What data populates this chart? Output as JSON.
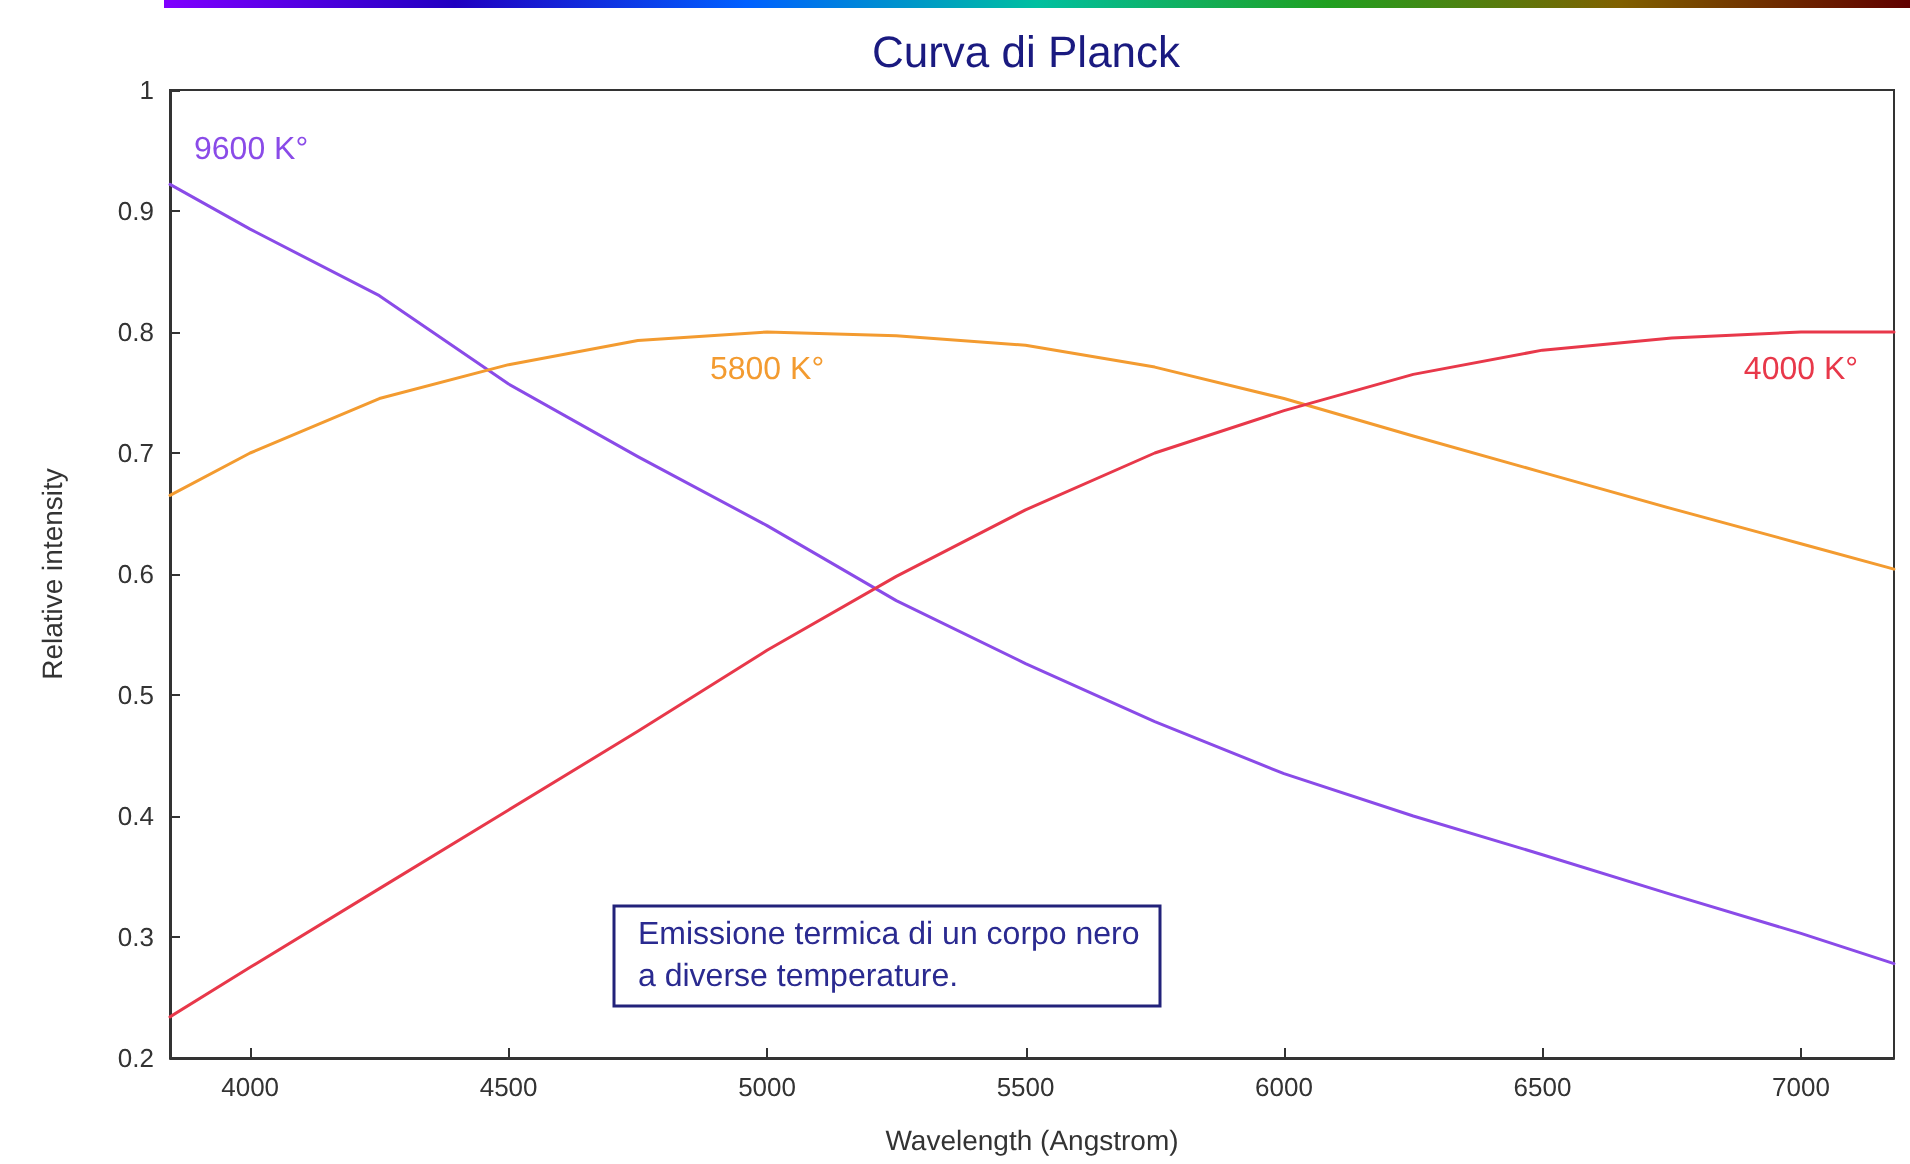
{
  "chart_data": {
    "type": "line",
    "title": "Curva di Planck",
    "xlabel": "Wavelength (Angstrom)",
    "ylabel": "Relative intensity",
    "x": [
      3845,
      4000,
      4250,
      4500,
      4750,
      5000,
      5250,
      5500,
      5750,
      6000,
      6250,
      6500,
      6750,
      7000,
      7180
    ],
    "series": [
      {
        "name": "9600 K°",
        "color": "#8a4be8",
        "values": [
          0.922,
          0.885,
          0.83,
          0.757,
          0.697,
          0.64,
          0.578,
          0.526,
          0.478,
          0.435,
          0.4,
          0.368,
          0.335,
          0.303,
          0.278
        ]
      },
      {
        "name": "5800 K°",
        "color": "#f39b30",
        "values": [
          0.665,
          0.7,
          0.745,
          0.773,
          0.793,
          0.8,
          0.797,
          0.789,
          0.771,
          0.745,
          0.714,
          0.684,
          0.654,
          0.625,
          0.604
        ]
      },
      {
        "name": "4000 K°",
        "color": "#e8384a",
        "values": [
          0.234,
          0.275,
          0.34,
          0.405,
          0.47,
          0.537,
          0.598,
          0.653,
          0.7,
          0.735,
          0.765,
          0.785,
          0.795,
          0.8,
          0.8
        ]
      }
    ],
    "xlim": [
      3845,
      7180
    ],
    "xticks": [
      4000,
      4500,
      5000,
      5500,
      6000,
      6500,
      7000
    ],
    "ylim": [
      0.2,
      1
    ],
    "yticks": [
      0.2,
      0.3,
      0.4,
      0.5,
      0.6,
      0.7,
      0.8,
      0.9,
      1
    ],
    "grid": false,
    "legend": false,
    "marker": "none",
    "line_style": "solid",
    "annotations": [
      "Emissione termica di un corpo nero\na diverse temperature."
    ]
  }
}
